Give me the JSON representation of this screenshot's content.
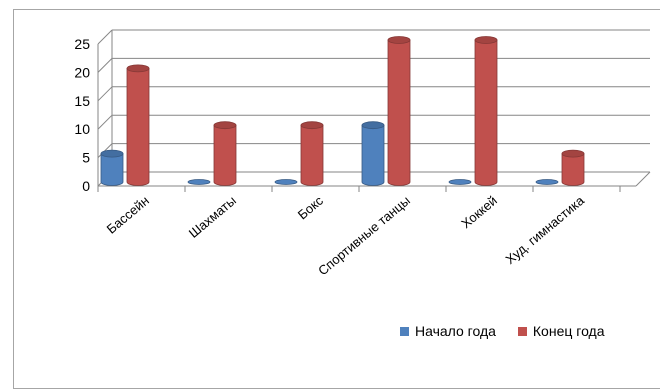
{
  "chart_data": {
    "type": "bar",
    "categories": [
      "Бассейн",
      "Шахматы",
      "Бокс",
      "Спортивные танцы",
      "Хоккей",
      "Худ. гимнастика"
    ],
    "series": [
      {
        "name": "Начало года",
        "values": [
          5,
          0,
          0,
          10,
          0,
          0
        ],
        "color": "#4F81BD"
      },
      {
        "name": "Конец года",
        "values": [
          20,
          10,
          10,
          25,
          25,
          5
        ],
        "color": "#C0504D"
      }
    ],
    "yticks": [
      "0",
      "5",
      "10",
      "15",
      "20",
      "25"
    ],
    "ylim": [
      0,
      25
    ],
    "grid": true,
    "legend_position": "bottom-right",
    "title": "",
    "xlabel": "",
    "ylabel": ""
  }
}
